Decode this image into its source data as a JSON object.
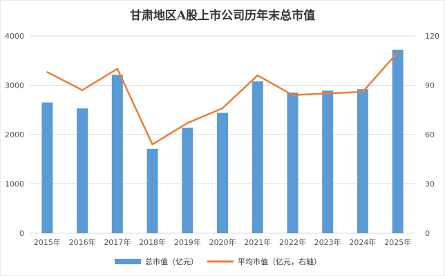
{
  "chart_data": {
    "type": "bar+line",
    "title": "甘肃地区A股上市公司历年末总市值",
    "categories": [
      "2015年",
      "2016年",
      "2017年",
      "2018年",
      "2019年",
      "2020年",
      "2021年",
      "2022年",
      "2023年",
      "2024年",
      "2025年"
    ],
    "series": [
      {
        "name": "总市值（亿元）",
        "type": "bar",
        "axis": "left",
        "color": "#5B9BD5",
        "values": [
          2650,
          2530,
          3210,
          1710,
          2140,
          2440,
          3080,
          2850,
          2890,
          2920,
          3720
        ]
      },
      {
        "name": "平均市值（亿元，右轴）",
        "type": "line",
        "axis": "right",
        "color": "#ED7D31",
        "values": [
          98,
          87,
          100,
          54,
          67,
          76,
          96,
          84,
          85,
          86,
          110
        ]
      }
    ],
    "y_left": {
      "min": 0,
      "max": 4000,
      "ticks": [
        "0",
        "1000",
        "2000",
        "3000",
        "4000"
      ]
    },
    "y_right": {
      "min": 0,
      "max": 120,
      "ticks": [
        "0",
        "30",
        "60",
        "90",
        "120"
      ]
    },
    "grid": true,
    "legend_position": "bottom"
  }
}
